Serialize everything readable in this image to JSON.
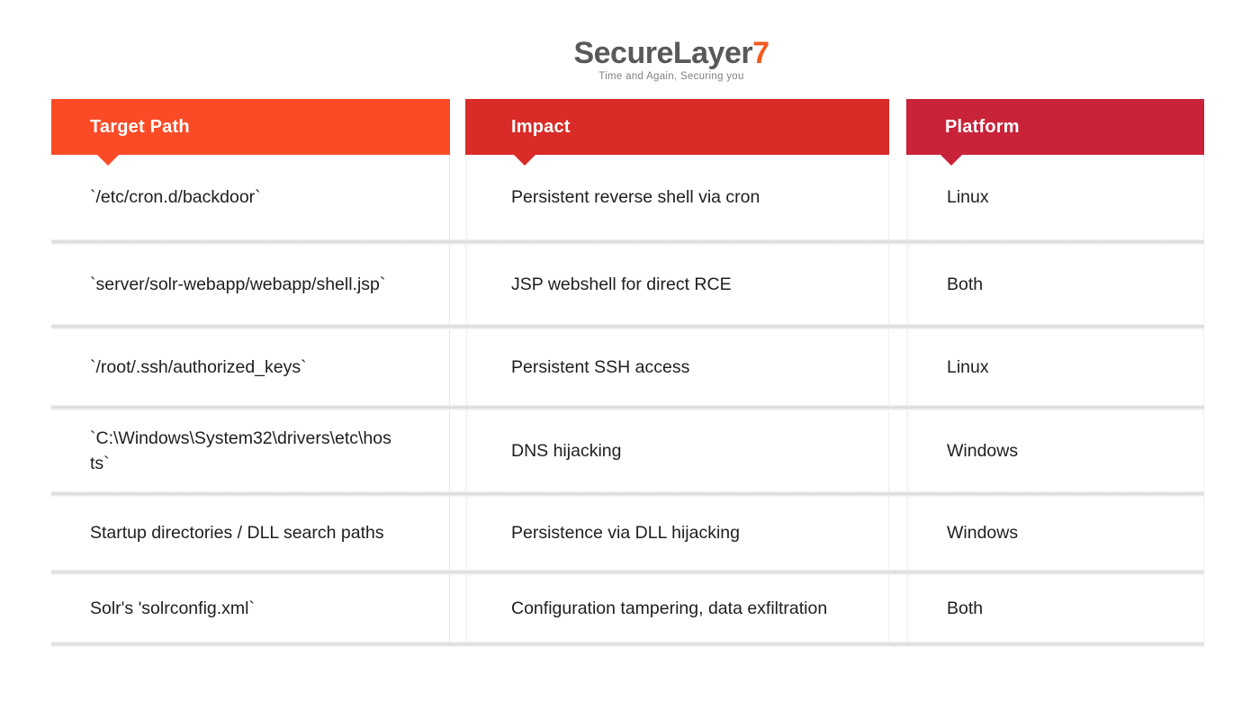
{
  "logo": {
    "brand": "SecureLayer",
    "accent": "7",
    "tagline": "Time and Again, Securing you"
  },
  "colors": {
    "header_target_path": "#fb4b26",
    "header_impact": "#d92b27",
    "header_platform": "#c9233a",
    "logo_text": "#58595b",
    "logo_accent": "#f4591f",
    "body_text": "#202020"
  },
  "chart_data": {
    "type": "table",
    "title": "",
    "columns": [
      "Target Path",
      "Impact",
      "Platform"
    ],
    "rows": [
      [
        "`/etc/cron.d/backdoor`",
        "Persistent reverse shell via cron",
        "Linux"
      ],
      [
        "`server/solr-webapp/webapp/shell.jsp`",
        "JSP webshell for direct RCE",
        "Both"
      ],
      [
        "`/root/.ssh/authorized_keys`",
        "Persistent SSH access",
        "Linux"
      ],
      [
        "`C:\\Windows\\System32\\drivers\\etc\\hosts`",
        "DNS hijacking",
        "Windows"
      ],
      [
        "Startup directories / DLL search paths",
        "Persistence via DLL hijacking",
        "Windows"
      ],
      [
        "Solr's 'solrconfig.xml`",
        "Configuration tampering, data exfiltration",
        "Both"
      ]
    ],
    "layout": {
      "grid": false,
      "legend": "none"
    }
  }
}
